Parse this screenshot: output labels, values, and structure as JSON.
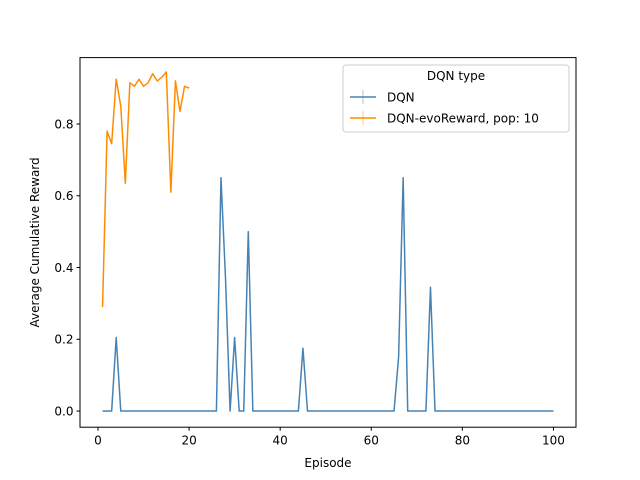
{
  "chart_data": {
    "type": "line",
    "title": "",
    "xlabel": "Episode",
    "ylabel": "Average Cumulative Reward",
    "xlim": [
      -3.95,
      104.95
    ],
    "ylim": [
      -0.045,
      0.985
    ],
    "xticks": [
      0,
      20,
      40,
      60,
      80,
      100
    ],
    "yticks": [
      0.0,
      0.2,
      0.4,
      0.6,
      0.8
    ],
    "xtick_labels": [
      "0",
      "20",
      "40",
      "60",
      "80",
      "100"
    ],
    "ytick_labels": [
      "0.0",
      "0.2",
      "0.4",
      "0.6",
      "0.8"
    ],
    "grid": false,
    "legend": {
      "title": "DQN type",
      "placement": "top-right"
    },
    "series": [
      {
        "name": "DQN",
        "color": "#4682b4",
        "x": [
          1,
          2,
          3,
          4,
          5,
          6,
          7,
          8,
          9,
          10,
          11,
          12,
          13,
          14,
          15,
          16,
          17,
          18,
          19,
          20,
          21,
          22,
          23,
          24,
          25,
          26,
          27,
          28,
          29,
          30,
          31,
          32,
          33,
          34,
          35,
          36,
          37,
          38,
          39,
          40,
          41,
          42,
          43,
          44,
          45,
          46,
          47,
          48,
          49,
          50,
          51,
          52,
          53,
          54,
          55,
          56,
          57,
          58,
          59,
          60,
          61,
          62,
          63,
          64,
          65,
          66,
          67,
          68,
          69,
          70,
          71,
          72,
          73,
          74,
          75,
          76,
          77,
          78,
          79,
          80,
          81,
          82,
          83,
          84,
          85,
          86,
          87,
          88,
          89,
          90,
          91,
          92,
          93,
          94,
          95,
          96,
          97,
          98,
          99,
          100
        ],
        "y": [
          0,
          0,
          0,
          0.205,
          0,
          0,
          0,
          0,
          0,
          0,
          0,
          0,
          0,
          0,
          0,
          0,
          0,
          0,
          0,
          0,
          0,
          0,
          0,
          0,
          0,
          0,
          0.65,
          0.37,
          0,
          0.205,
          0,
          0,
          0.5,
          0,
          0,
          0,
          0,
          0,
          0,
          0,
          0,
          0,
          0,
          0,
          0.175,
          0,
          0,
          0,
          0,
          0,
          0,
          0,
          0,
          0,
          0,
          0,
          0,
          0,
          0,
          0,
          0,
          0,
          0,
          0,
          0,
          0.15,
          0.65,
          0,
          0,
          0,
          0,
          0,
          0.345,
          0,
          0,
          0,
          0,
          0,
          0,
          0,
          0,
          0,
          0,
          0,
          0,
          0,
          0,
          0,
          0,
          0,
          0,
          0,
          0,
          0,
          0,
          0,
          0,
          0,
          0,
          0
        ]
      },
      {
        "name": "DQN-evoReward, pop: 10",
        "color": "#ff8c00",
        "x": [
          1,
          2,
          3,
          4,
          5,
          6,
          7,
          8,
          9,
          10,
          11,
          12,
          13,
          14,
          15,
          16,
          17,
          18,
          19,
          20
        ],
        "y": [
          0.29,
          0.78,
          0.745,
          0.925,
          0.85,
          0.635,
          0.915,
          0.905,
          0.925,
          0.905,
          0.915,
          0.94,
          0.92,
          0.93,
          0.945,
          0.61,
          0.92,
          0.835,
          0.905,
          0.9
        ]
      }
    ]
  }
}
